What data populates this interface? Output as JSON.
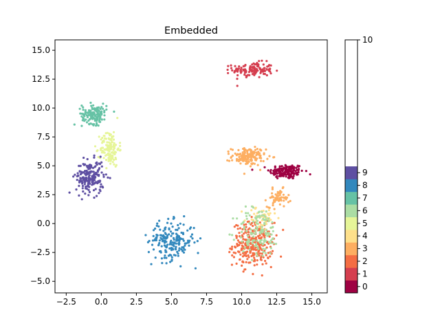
{
  "chart_data": {
    "type": "scatter",
    "title": "Embedded",
    "xlabel": "",
    "ylabel": "",
    "xlim": [
      -3.3,
      16.1
    ],
    "ylim": [
      -6.0,
      15.9
    ],
    "x_ticks": [
      -2.5,
      0.0,
      2.5,
      5.0,
      7.5,
      10.0,
      12.5,
      15.0
    ],
    "x_tick_labels": [
      "−2.5",
      "0.0",
      "2.5",
      "5.0",
      "7.5",
      "10.0",
      "12.5",
      "15.0"
    ],
    "y_ticks": [
      -5.0,
      -2.5,
      0.0,
      2.5,
      5.0,
      7.5,
      10.0,
      12.5,
      15.0
    ],
    "y_tick_labels": [
      "−5.0",
      "−2.5",
      "0.0",
      "2.5",
      "5.0",
      "7.5",
      "10.0",
      "12.5",
      "15.0"
    ],
    "grid": false,
    "colorbar": {
      "range": [
        0,
        10
      ],
      "tick_labels": [
        "0",
        "1",
        "2",
        "3",
        "4",
        "5",
        "6",
        "7",
        "8",
        "9",
        "10"
      ],
      "colors": [
        "#9e0142",
        "#d53e4f",
        "#f46d43",
        "#fdae61",
        "#fee08b",
        "#e6f598",
        "#abdda4",
        "#66c2a5",
        "#3288bd",
        "#5e4fa2"
      ]
    },
    "series": [
      {
        "label_value": 0,
        "color": "#9e0142",
        "clusters": [
          {
            "cx": 13.2,
            "cy": 4.5,
            "sx": 1.1,
            "sy": 0.6,
            "n": 160
          }
        ]
      },
      {
        "label_value": 1,
        "color": "#d53e4f",
        "clusters": [
          {
            "cx": 10.8,
            "cy": 13.3,
            "sx": 1.3,
            "sy": 0.6,
            "n": 130
          }
        ]
      },
      {
        "label_value": 2,
        "color": "#f46d43",
        "clusters": [
          {
            "cx": 10.8,
            "cy": -1.8,
            "sx": 1.3,
            "sy": 1.7,
            "n": 300
          }
        ]
      },
      {
        "label_value": 3,
        "color": "#fdae61",
        "clusters": [
          {
            "cx": 10.5,
            "cy": 5.8,
            "sx": 1.1,
            "sy": 0.7,
            "n": 150
          },
          {
            "cx": 12.6,
            "cy": 2.2,
            "sx": 0.7,
            "sy": 0.7,
            "n": 60
          }
        ]
      },
      {
        "label_value": 4,
        "color": "#fee08b",
        "clusters": [
          {
            "cx": 11.4,
            "cy": 0.5,
            "sx": 1.0,
            "sy": 1.0,
            "n": 50
          }
        ]
      },
      {
        "label_value": 5,
        "color": "#e6f598",
        "clusters": [
          {
            "cx": 0.6,
            "cy": 6.5,
            "sx": 0.6,
            "sy": 1.4,
            "n": 140
          }
        ]
      },
      {
        "label_value": 6,
        "color": "#abdda4",
        "clusters": [
          {
            "cx": 11.2,
            "cy": -0.8,
            "sx": 1.4,
            "sy": 2.0,
            "n": 130
          }
        ]
      },
      {
        "label_value": 7,
        "color": "#66c2a5",
        "clusters": [
          {
            "cx": -0.5,
            "cy": 9.5,
            "sx": 0.8,
            "sy": 0.8,
            "n": 150
          }
        ]
      },
      {
        "label_value": 8,
        "color": "#3288bd",
        "clusters": [
          {
            "cx": 5.0,
            "cy": -1.5,
            "sx": 1.5,
            "sy": 1.5,
            "n": 200
          }
        ]
      },
      {
        "label_value": 9,
        "color": "#5e4fa2",
        "clusters": [
          {
            "cx": -0.8,
            "cy": 4.0,
            "sx": 0.9,
            "sy": 1.3,
            "n": 200
          }
        ]
      }
    ]
  }
}
